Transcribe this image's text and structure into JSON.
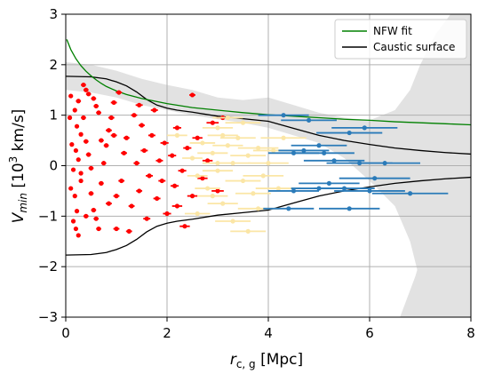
{
  "chart_data": {
    "type": "scatter",
    "xlabel": "r",
    "xlabel_sub": "c, g",
    "xlabel_unit": " [Mpc]",
    "ylabel": "V",
    "ylabel_sub": "min",
    "ylabel_rest": " [10",
    "ylabel_sup": "3",
    "ylabel_unit": " km/s]",
    "xlim": [
      0,
      8
    ],
    "ylim": [
      -3,
      3
    ],
    "x_ticks": [
      0,
      2,
      4,
      6,
      8
    ],
    "y_ticks": [
      -3,
      -2,
      -1,
      0,
      1,
      2,
      3
    ],
    "grid": true,
    "legend": {
      "placement": "top-right",
      "entries": [
        "NFW fit",
        "Caustic surface"
      ]
    },
    "colors": {
      "nfw": "#008000",
      "caustic": "#000000",
      "band": "#e2e2e2",
      "red_members": "#ff0000",
      "yellow_members": "#fbe6a6",
      "blue_members": "#2b7bb9",
      "grid": "#b0b0b0"
    },
    "nfw_fit": {
      "x": [
        0.02,
        0.1,
        0.2,
        0.3,
        0.4,
        0.5,
        0.6,
        0.7,
        0.8,
        1.0,
        1.2,
        1.5,
        2.0,
        2.5,
        3.0,
        3.5,
        4.0,
        4.5,
        5.0,
        5.5,
        6.0,
        6.5,
        7.0,
        7.5,
        8.0
      ],
      "y": [
        2.5,
        2.3,
        2.12,
        1.98,
        1.87,
        1.78,
        1.7,
        1.63,
        1.57,
        1.48,
        1.41,
        1.33,
        1.23,
        1.15,
        1.1,
        1.05,
        1.01,
        0.98,
        0.95,
        0.92,
        0.9,
        0.87,
        0.85,
        0.83,
        0.81
      ]
    },
    "caustic_upper": {
      "x": [
        0.0,
        0.5,
        0.8,
        1.0,
        1.2,
        1.4,
        1.6,
        1.8,
        2.0,
        2.2,
        2.5,
        3.0,
        3.5,
        4.0,
        4.5,
        5.0,
        5.5,
        6.0,
        6.5,
        7.0,
        7.5,
        8.0
      ],
      "y": [
        1.77,
        1.76,
        1.72,
        1.66,
        1.58,
        1.46,
        1.31,
        1.2,
        1.14,
        1.1,
        1.06,
        0.98,
        0.93,
        0.88,
        0.74,
        0.6,
        0.5,
        0.42,
        0.35,
        0.3,
        0.26,
        0.23
      ]
    },
    "caustic_lower": {
      "x": [
        0.0,
        0.5,
        0.8,
        1.0,
        1.2,
        1.4,
        1.6,
        1.8,
        2.0,
        2.2,
        2.5,
        3.0,
        3.5,
        4.0,
        4.5,
        5.0,
        5.5,
        6.0,
        6.5,
        7.0,
        7.5,
        8.0
      ],
      "y": [
        -1.77,
        -1.76,
        -1.72,
        -1.66,
        -1.58,
        -1.46,
        -1.31,
        -1.2,
        -1.14,
        -1.1,
        -1.06,
        -0.98,
        -0.93,
        -0.88,
        -0.74,
        -0.6,
        -0.5,
        -0.42,
        -0.35,
        -0.3,
        -0.26,
        -0.23
      ]
    },
    "band_upper": {
      "x": [
        0.0,
        0.5,
        1.0,
        1.5,
        2.0,
        2.5,
        3.0,
        3.5,
        4.0,
        4.5,
        5.0,
        5.5,
        6.0,
        6.5,
        6.8,
        7.0,
        7.3,
        7.6,
        8.0
      ],
      "y": [
        2.05,
        2.0,
        1.88,
        1.72,
        1.6,
        1.5,
        1.35,
        1.3,
        1.35,
        1.2,
        1.05,
        0.95,
        0.9,
        1.1,
        1.5,
        2.0,
        2.6,
        3.0,
        3.0
      ]
    },
    "band_lower": {
      "x": [
        0.0,
        0.5,
        1.0,
        1.5,
        2.0,
        2.5,
        3.0,
        3.5,
        4.0,
        4.5,
        5.0,
        5.5,
        6.0,
        6.5,
        6.8,
        7.0,
        7.3,
        7.6,
        8.0
      ],
      "y": [
        1.5,
        1.45,
        1.35,
        1.2,
        1.1,
        1.0,
        0.92,
        0.85,
        0.75,
        0.6,
        0.45,
        0.15,
        -0.3,
        -0.8,
        -1.5,
        -2.3,
        -3.0,
        -3.0,
        -3.0
      ]
    },
    "series": [
      {
        "group": "red",
        "points": [
          [
            0.1,
            1.38,
            0.04
          ],
          [
            0.18,
            1.1,
            0.04
          ],
          [
            0.08,
            0.95,
            0.04
          ],
          [
            0.25,
            1.28,
            0.05
          ],
          [
            0.35,
            1.6,
            0.05
          ],
          [
            0.4,
            1.5,
            0.05
          ],
          [
            0.45,
            1.42,
            0.05
          ],
          [
            0.55,
            1.33,
            0.05
          ],
          [
            0.6,
            1.18,
            0.05
          ],
          [
            0.65,
            1.05,
            0.05
          ],
          [
            0.22,
            0.78,
            0.04
          ],
          [
            0.3,
            0.62,
            0.04
          ],
          [
            0.12,
            0.42,
            0.04
          ],
          [
            0.2,
            0.3,
            0.04
          ],
          [
            0.25,
            0.12,
            0.04
          ],
          [
            0.15,
            -0.08,
            0.04
          ],
          [
            0.1,
            -0.45,
            0.04
          ],
          [
            0.18,
            -0.6,
            0.04
          ],
          [
            0.22,
            -0.9,
            0.04
          ],
          [
            0.15,
            -1.1,
            0.04
          ],
          [
            0.2,
            -1.25,
            0.04
          ],
          [
            0.25,
            -1.38,
            0.04
          ],
          [
            0.3,
            -0.3,
            0.04
          ],
          [
            0.35,
            0.95,
            0.05
          ],
          [
            0.4,
            0.48,
            0.05
          ],
          [
            0.45,
            0.22,
            0.05
          ],
          [
            0.5,
            -0.05,
            0.05
          ],
          [
            0.5,
            -0.55,
            0.05
          ],
          [
            0.55,
            -0.88,
            0.05
          ],
          [
            0.6,
            -1.05,
            0.05
          ],
          [
            0.65,
            -1.25,
            0.05
          ],
          [
            0.7,
            -0.35,
            0.05
          ],
          [
            0.75,
            0.05,
            0.05
          ],
          [
            0.8,
            0.4,
            0.05
          ],
          [
            0.85,
            0.7,
            0.06
          ],
          [
            0.9,
            0.95,
            0.06
          ],
          [
            0.95,
            1.25,
            0.06
          ],
          [
            1.0,
            -0.6,
            0.06
          ],
          [
            1.0,
            -1.25,
            0.06
          ],
          [
            1.1,
            -0.3,
            0.06
          ],
          [
            1.15,
            0.25,
            0.06
          ],
          [
            1.2,
            0.55,
            0.06
          ],
          [
            1.3,
            -0.8,
            0.06
          ],
          [
            1.35,
            1.0,
            0.06
          ],
          [
            1.4,
            0.05,
            0.06
          ],
          [
            1.45,
            -0.5,
            0.06
          ],
          [
            1.5,
            0.8,
            0.06
          ],
          [
            1.55,
            0.3,
            0.07
          ],
          [
            1.6,
            -1.05,
            0.07
          ],
          [
            1.65,
            -0.2,
            0.07
          ],
          [
            1.7,
            0.6,
            0.07
          ],
          [
            1.75,
            1.1,
            0.07
          ],
          [
            1.8,
            -0.65,
            0.07
          ],
          [
            1.85,
            0.1,
            0.07
          ],
          [
            1.9,
            -0.3,
            0.07
          ],
          [
            1.95,
            0.45,
            0.08
          ],
          [
            2.0,
            -0.95,
            0.08
          ],
          [
            2.1,
            0.2,
            0.08
          ],
          [
            2.15,
            -0.4,
            0.08
          ],
          [
            2.2,
            0.75,
            0.08
          ],
          [
            2.3,
            -0.1,
            0.08
          ],
          [
            2.35,
            -1.2,
            0.1
          ],
          [
            2.4,
            0.35,
            0.08
          ],
          [
            2.5,
            1.4,
            0.06
          ],
          [
            2.5,
            -0.6,
            0.1
          ],
          [
            2.6,
            0.55,
            0.1
          ],
          [
            2.7,
            -0.25,
            0.1
          ],
          [
            2.8,
            0.1,
            0.1
          ],
          [
            2.9,
            0.85,
            0.12
          ],
          [
            3.0,
            -0.5,
            0.12
          ],
          [
            3.1,
            0.95,
            0.12
          ],
          [
            0.95,
            0.6,
            0.06
          ],
          [
            0.7,
            0.5,
            0.05
          ],
          [
            0.3,
            -0.15,
            0.04
          ],
          [
            1.25,
            -1.3,
            0.06
          ],
          [
            1.05,
            1.45,
            0.06
          ],
          [
            0.85,
            -0.75,
            0.06
          ],
          [
            0.4,
            -1.0,
            0.05
          ],
          [
            1.45,
            1.2,
            0.07
          ],
          [
            2.2,
            -0.8,
            0.1
          ]
        ]
      },
      {
        "group": "yellow",
        "points": [
          [
            2.2,
            0.6,
            0.2
          ],
          [
            2.5,
            0.15,
            0.2
          ],
          [
            2.6,
            -0.2,
            0.2
          ],
          [
            2.7,
            0.45,
            0.25
          ],
          [
            2.8,
            -0.45,
            0.25
          ],
          [
            2.9,
            0.25,
            0.3
          ],
          [
            3.0,
            0.75,
            0.3
          ],
          [
            3.0,
            -0.1,
            0.3
          ],
          [
            3.1,
            -0.75,
            0.3
          ],
          [
            3.2,
            0.4,
            0.3
          ],
          [
            3.3,
            0.05,
            0.35
          ],
          [
            3.4,
            0.55,
            0.35
          ],
          [
            3.5,
            -0.3,
            0.35
          ],
          [
            3.6,
            0.2,
            0.35
          ],
          [
            3.7,
            -0.55,
            0.35
          ],
          [
            3.8,
            0.35,
            0.4
          ],
          [
            3.9,
            -0.2,
            0.4
          ],
          [
            3.3,
            -1.1,
            0.35
          ],
          [
            3.6,
            -1.3,
            0.35
          ],
          [
            4.0,
            0.05,
            0.4
          ],
          [
            3.2,
            0.95,
            0.3
          ],
          [
            3.5,
            0.85,
            0.35
          ],
          [
            2.6,
            -0.95,
            0.25
          ],
          [
            4.2,
            -0.45,
            0.45
          ],
          [
            3.8,
            -0.85,
            0.4
          ],
          [
            3.0,
            0.05,
            0.3
          ],
          [
            2.9,
            -0.6,
            0.3
          ],
          [
            3.1,
            0.6,
            0.3
          ],
          [
            4.3,
            0.55,
            0.45
          ],
          [
            4.1,
            0.3,
            0.4
          ]
        ]
      },
      {
        "group": "blue",
        "points": [
          [
            4.3,
            1.0,
            0.5
          ],
          [
            4.5,
            0.25,
            0.5
          ],
          [
            4.7,
            0.3,
            0.5
          ],
          [
            4.8,
            0.9,
            0.55
          ],
          [
            5.0,
            0.4,
            0.55
          ],
          [
            5.1,
            0.25,
            0.6
          ],
          [
            5.2,
            -0.35,
            0.6
          ],
          [
            5.3,
            0.1,
            0.6
          ],
          [
            5.6,
            0.65,
            0.65
          ],
          [
            5.8,
            0.05,
            0.65
          ],
          [
            5.9,
            0.75,
            0.65
          ],
          [
            6.1,
            -0.25,
            0.7
          ],
          [
            6.3,
            0.05,
            0.7
          ],
          [
            6.8,
            -0.55,
            0.75
          ],
          [
            4.4,
            -0.85,
            0.5
          ],
          [
            5.6,
            -0.85,
            0.6
          ],
          [
            4.5,
            -0.5,
            0.5
          ],
          [
            5.5,
            -0.45,
            0.6
          ],
          [
            5.0,
            -0.45,
            0.55
          ],
          [
            6.0,
            -0.5,
            0.7
          ]
        ]
      }
    ]
  }
}
